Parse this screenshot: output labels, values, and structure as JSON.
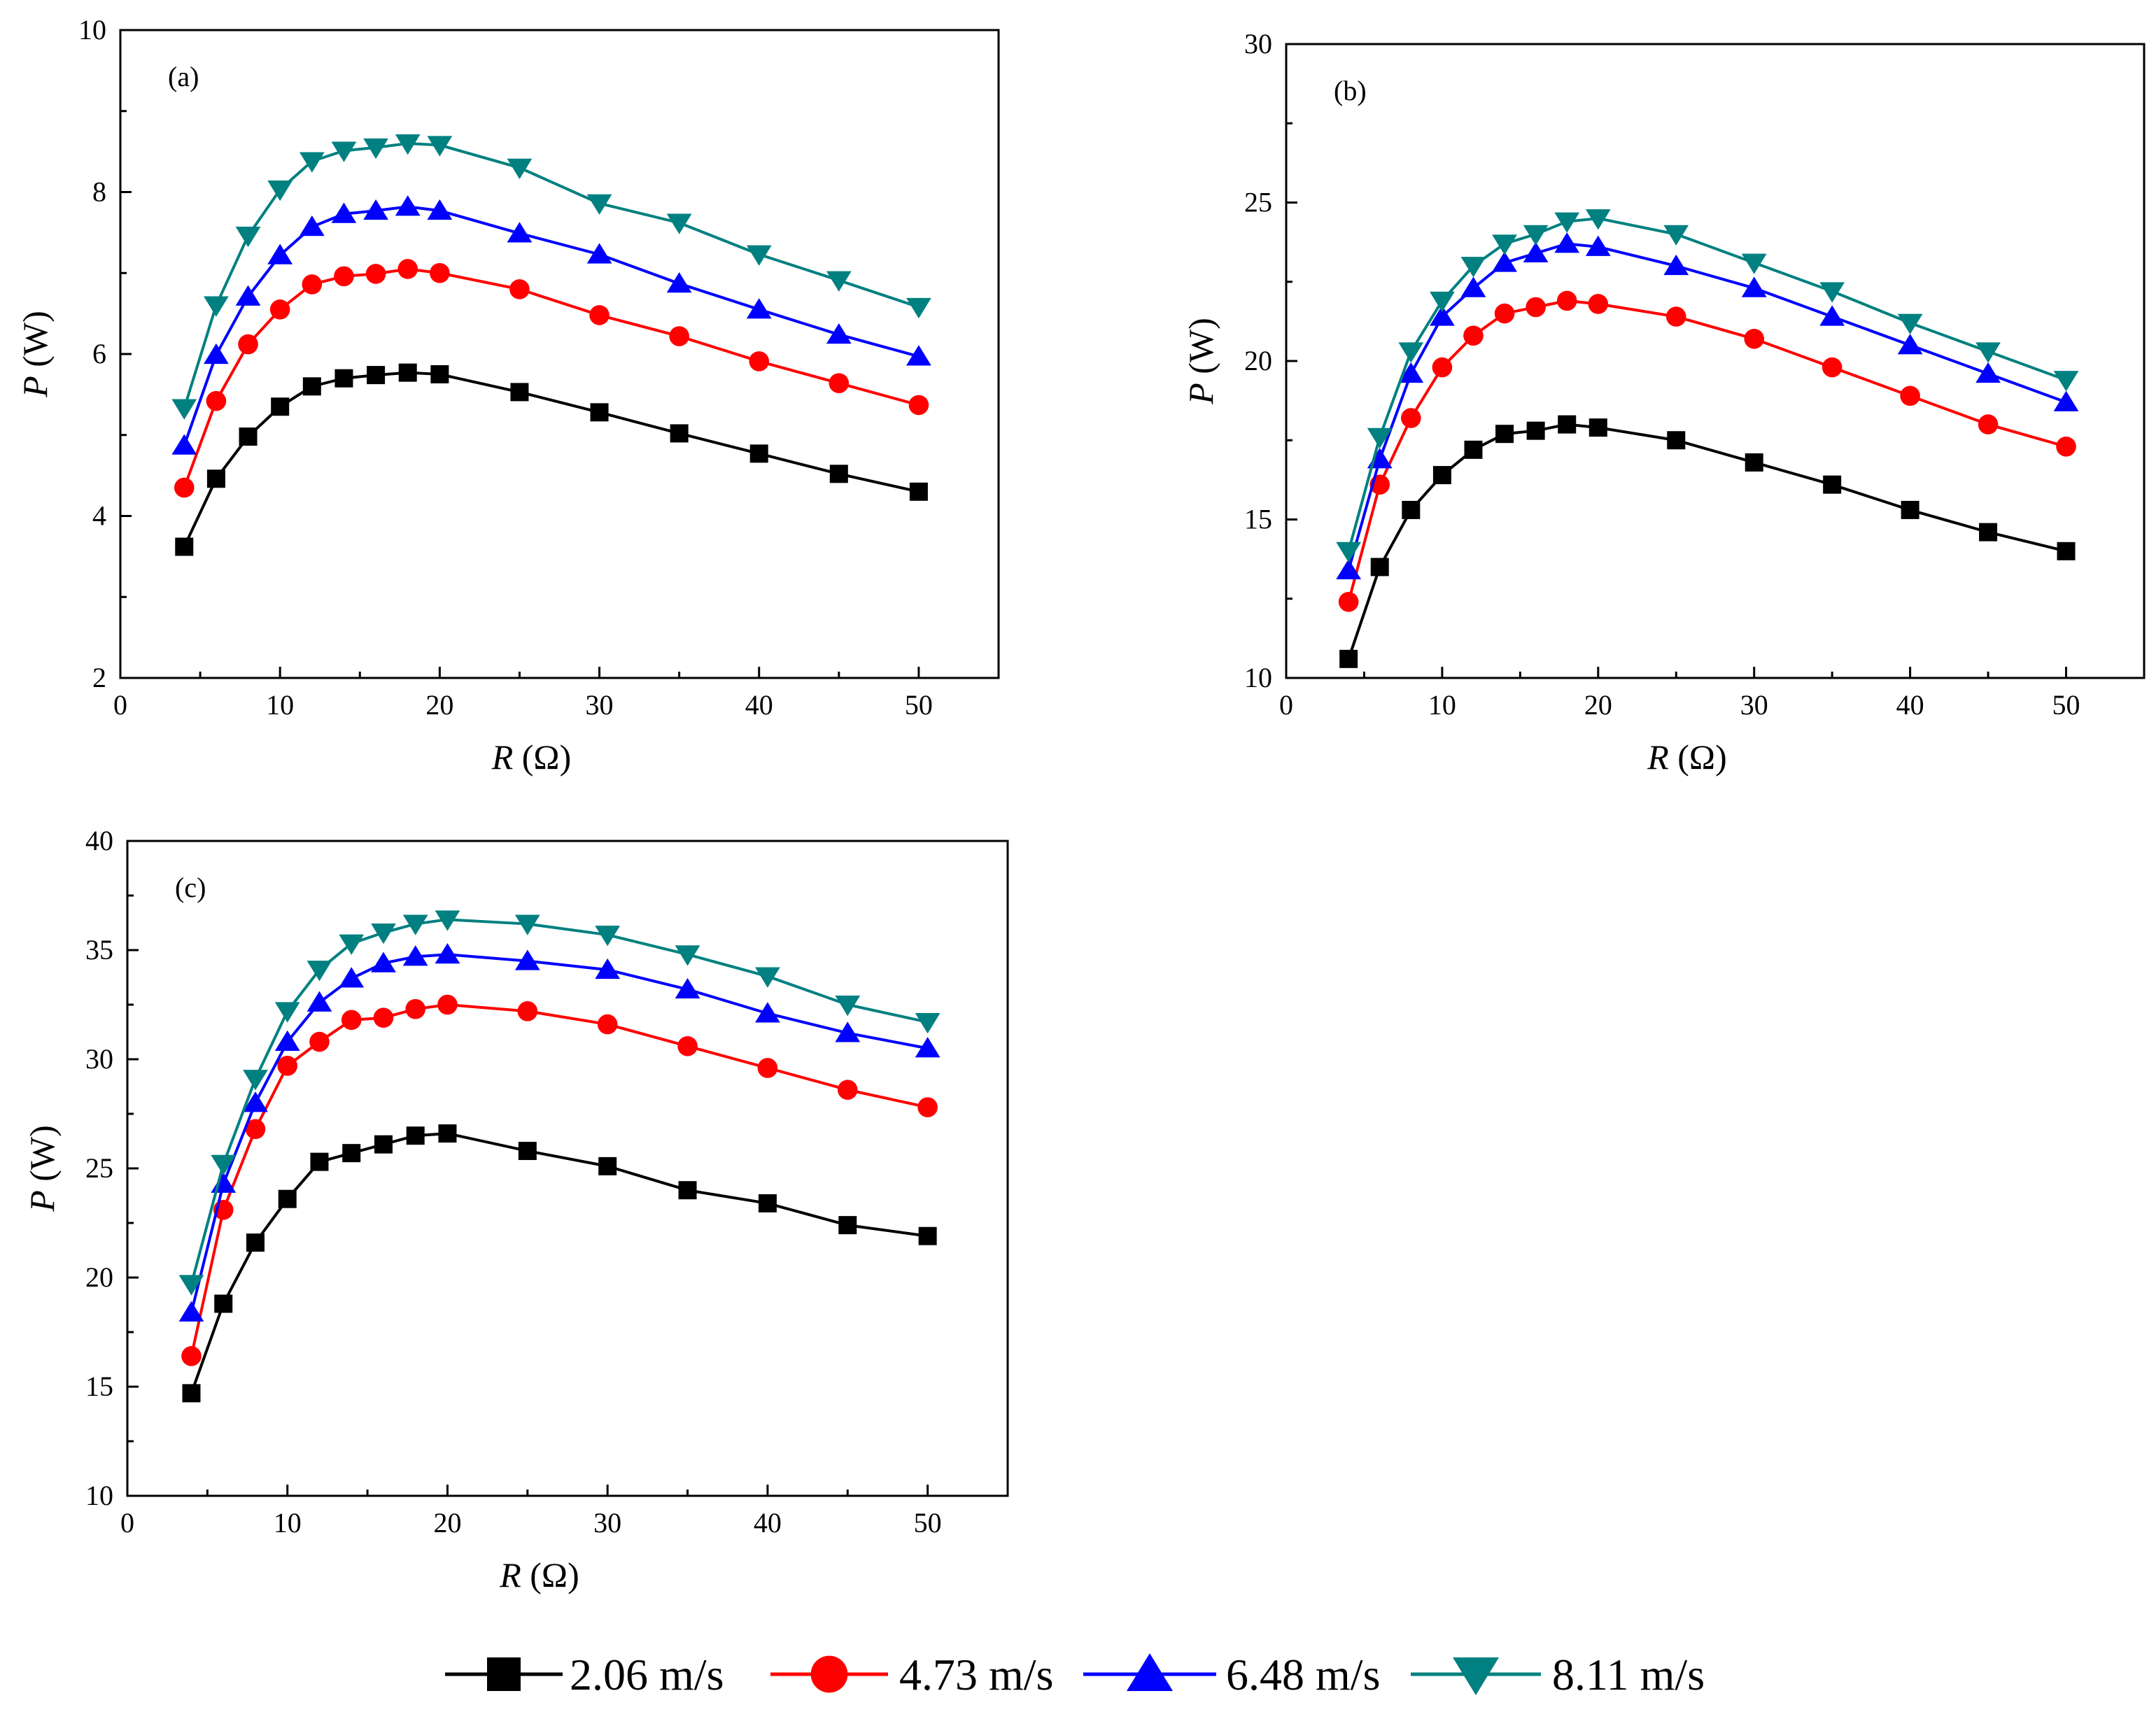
{
  "legend": {
    "placement": "bottom-center",
    "entries": [
      {
        "label": "2.06 m/s",
        "color": "#000000",
        "marker": "square"
      },
      {
        "label": "4.73 m/s",
        "color": "#ff0000",
        "marker": "circle"
      },
      {
        "label": "6.48 m/s",
        "color": "#0000ff",
        "marker": "triangle-up"
      },
      {
        "label": "8.11 m/s",
        "color": "#008080",
        "marker": "triangle-down"
      }
    ]
  },
  "chart_data": [
    {
      "panel_label": "(a)",
      "type": "line",
      "x_label_main": "R",
      "x_label_unit": " (Ω)",
      "y_label_main": "P",
      "y_label_unit": " (W)",
      "xlim": [
        0,
        55
      ],
      "ylim": [
        2,
        10
      ],
      "xticks": [
        0,
        10,
        20,
        30,
        40,
        50
      ],
      "yticks": [
        2,
        4,
        6,
        8,
        10
      ],
      "x": [
        4,
        6,
        8,
        10,
        12,
        14,
        16,
        18,
        20,
        25,
        30,
        35,
        40,
        45,
        50
      ],
      "series": [
        {
          "name": "2.06 m/s",
          "values": [
            3.62,
            4.46,
            4.98,
            5.35,
            5.6,
            5.7,
            5.74,
            5.77,
            5.75,
            5.53,
            5.28,
            5.02,
            4.77,
            4.52,
            4.3
          ]
        },
        {
          "name": "4.73 m/s",
          "values": [
            4.35,
            5.42,
            6.12,
            6.55,
            6.86,
            6.96,
            6.99,
            7.05,
            7.0,
            6.8,
            6.48,
            6.22,
            5.91,
            5.64,
            5.37
          ]
        },
        {
          "name": "6.48 m/s",
          "values": [
            4.87,
            5.99,
            6.71,
            7.22,
            7.57,
            7.73,
            7.77,
            7.82,
            7.77,
            7.49,
            7.23,
            6.87,
            6.55,
            6.24,
            5.97
          ]
        },
        {
          "name": "8.11 m/s",
          "values": [
            5.33,
            6.6,
            7.46,
            8.03,
            8.38,
            8.51,
            8.55,
            8.6,
            8.58,
            8.3,
            7.86,
            7.62,
            7.23,
            6.91,
            6.58
          ]
        }
      ]
    },
    {
      "panel_label": "(b)",
      "type": "line",
      "x_label_main": "R",
      "x_label_unit": " (Ω)",
      "y_label_main": "P",
      "y_label_unit": " (W)",
      "xlim": [
        0,
        55
      ],
      "ylim": [
        10,
        30
      ],
      "xticks": [
        0,
        10,
        20,
        30,
        40,
        50
      ],
      "yticks": [
        10,
        15,
        20,
        25,
        30
      ],
      "x": [
        4,
        6,
        8,
        10,
        12,
        14,
        16,
        18,
        20,
        25,
        30,
        35,
        40,
        45,
        50
      ],
      "series": [
        {
          "name": "2.06 m/s",
          "values": [
            10.6,
            13.5,
            15.3,
            16.4,
            17.2,
            17.7,
            17.8,
            18.0,
            17.9,
            17.5,
            16.8,
            16.1,
            15.3,
            14.6,
            14.0
          ]
        },
        {
          "name": "4.73 m/s",
          "values": [
            12.4,
            16.1,
            18.2,
            19.8,
            20.8,
            21.5,
            21.7,
            21.9,
            21.8,
            21.4,
            20.7,
            19.8,
            18.9,
            18.0,
            17.3
          ]
        },
        {
          "name": "6.48 m/s",
          "values": [
            13.4,
            16.9,
            19.6,
            21.4,
            22.3,
            23.1,
            23.4,
            23.7,
            23.6,
            23.0,
            22.3,
            21.4,
            20.5,
            19.6,
            18.7
          ]
        },
        {
          "name": "8.11 m/s",
          "values": [
            14.0,
            17.6,
            20.3,
            21.9,
            23.0,
            23.7,
            24.0,
            24.4,
            24.5,
            24.0,
            23.1,
            22.2,
            21.2,
            20.3,
            19.4
          ]
        }
      ]
    },
    {
      "panel_label": "(c)",
      "type": "line",
      "x_label_main": "R",
      "x_label_unit": " (Ω)",
      "y_label_main": "P",
      "y_label_unit": " (W)",
      "xlim": [
        0,
        55
      ],
      "ylim": [
        10,
        40
      ],
      "xticks": [
        0,
        10,
        20,
        30,
        40,
        50
      ],
      "yticks": [
        10,
        15,
        20,
        25,
        30,
        35,
        40
      ],
      "x": [
        4,
        6,
        8,
        10,
        12,
        14,
        16,
        18,
        20,
        25,
        30,
        35,
        40,
        45,
        50
      ],
      "series": [
        {
          "name": "2.06 m/s",
          "values": [
            14.7,
            18.8,
            21.6,
            23.6,
            25.3,
            25.7,
            26.1,
            26.5,
            26.6,
            25.8,
            25.1,
            24.0,
            23.4,
            22.4,
            21.9
          ]
        },
        {
          "name": "4.73 m/s",
          "values": [
            16.4,
            23.1,
            26.8,
            29.7,
            30.8,
            31.8,
            31.9,
            32.3,
            32.5,
            32.2,
            31.6,
            30.6,
            29.6,
            28.6,
            27.8
          ]
        },
        {
          "name": "6.48 m/s",
          "values": [
            18.4,
            24.3,
            28.0,
            30.8,
            32.6,
            33.7,
            34.4,
            34.7,
            34.8,
            34.5,
            34.1,
            33.2,
            32.1,
            31.2,
            30.5
          ]
        },
        {
          "name": "8.11 m/s",
          "values": [
            19.7,
            25.2,
            29.1,
            32.2,
            34.1,
            35.3,
            35.8,
            36.2,
            36.4,
            36.2,
            35.7,
            34.8,
            33.8,
            32.5,
            31.7
          ]
        }
      ]
    }
  ]
}
